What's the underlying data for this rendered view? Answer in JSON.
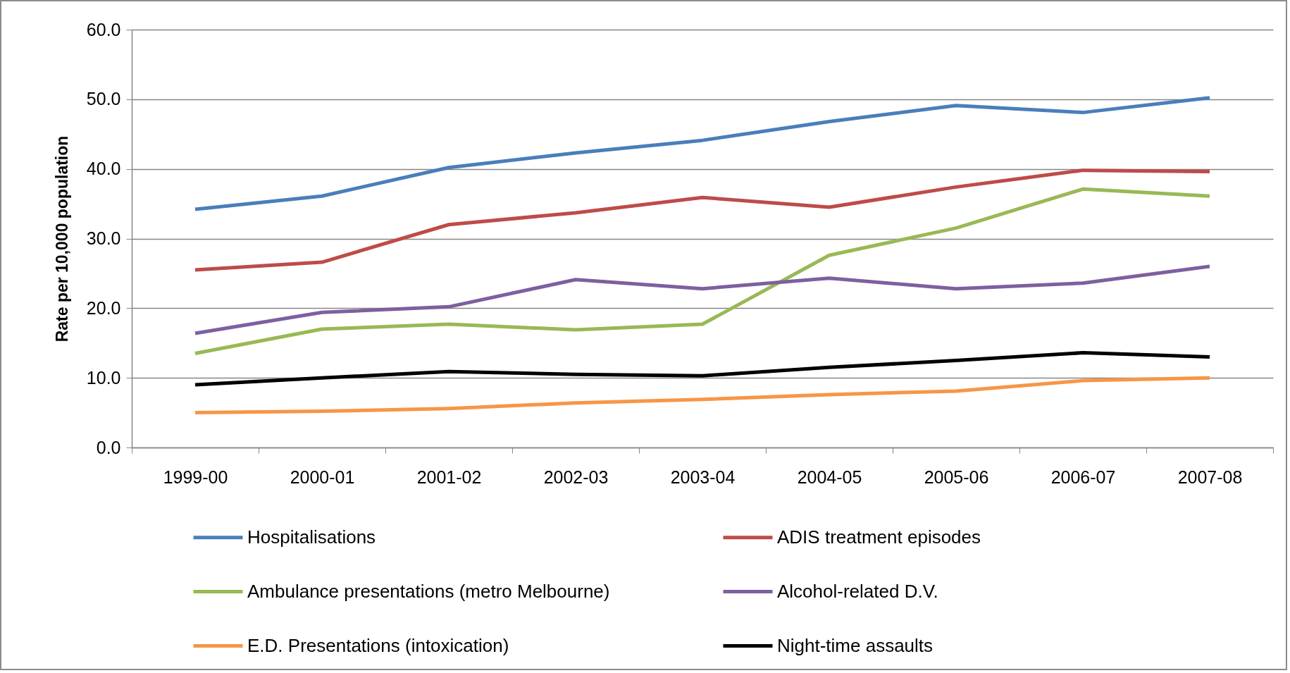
{
  "chart_data": {
    "type": "line",
    "ylabel": "Rate per 10,000 population",
    "categories": [
      "1999-00",
      "2000-01",
      "2001-02",
      "2002-03",
      "2003-04",
      "2004-05",
      "2005-06",
      "2006-07",
      "2007-08"
    ],
    "ylim": [
      0,
      60
    ],
    "yticks": [
      {
        "value": 0,
        "label": "0.0"
      },
      {
        "value": 10,
        "label": "10.0"
      },
      {
        "value": 20,
        "label": "20.0"
      },
      {
        "value": 30,
        "label": "30.0"
      },
      {
        "value": 40,
        "label": "40.0"
      },
      {
        "value": 50,
        "label": "50.0"
      },
      {
        "value": 60,
        "label": "60.0"
      }
    ],
    "grid": "y",
    "legend": "bottom",
    "marker": "none",
    "line_style": "solid",
    "series": [
      {
        "name": "Hospitalisations",
        "color": "#4a7ebb",
        "values": [
          34.2,
          36.1,
          40.2,
          42.3,
          44.1,
          46.8,
          49.1,
          48.1,
          50.2
        ]
      },
      {
        "name": "ADIS treatment  episodes",
        "color": "#be4b48",
        "values": [
          25.5,
          26.6,
          32.0,
          33.7,
          35.9,
          34.5,
          37.4,
          39.8,
          39.6
        ]
      },
      {
        "name": "Ambulance presentations (metro Melbourne)",
        "color": "#98b954",
        "values": [
          13.5,
          17.0,
          17.7,
          16.9,
          17.7,
          27.6,
          31.5,
          37.1,
          36.1
        ]
      },
      {
        "name": "Alcohol-related D.V.",
        "color": "#7d60a0",
        "values": [
          16.4,
          19.4,
          20.2,
          24.1,
          22.8,
          24.3,
          22.8,
          23.6,
          26.0
        ]
      },
      {
        "name": "E.D. Presentations (intoxication)",
        "color": "#f79646",
        "values": [
          5.0,
          5.2,
          5.6,
          6.4,
          6.9,
          7.6,
          8.1,
          9.6,
          10.0
        ]
      },
      {
        "name": "Night-time assaults",
        "color": "#000000",
        "values": [
          9.0,
          10.0,
          10.9,
          10.5,
          10.3,
          11.5,
          12.5,
          13.6,
          13.0
        ]
      }
    ]
  }
}
